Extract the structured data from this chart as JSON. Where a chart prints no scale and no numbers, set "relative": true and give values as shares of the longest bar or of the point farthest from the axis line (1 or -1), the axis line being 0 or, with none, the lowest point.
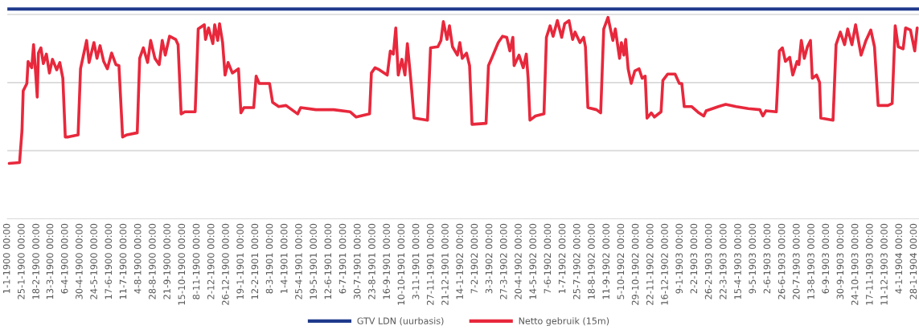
{
  "chart_data": {
    "type": "line",
    "relative": true,
    "legend": "bottom",
    "ref_lines": [
      {
        "axis": "y",
        "value": 0.325,
        "color": "#d9d9d9"
      },
      {
        "axis": "y",
        "value": 0.649,
        "color": "#d9d9d9"
      },
      {
        "axis": "y",
        "value": 0.974,
        "color": "#d9d9d9"
      }
    ],
    "line_style": "solid",
    "xlim": [
      "1900-01-01",
      "1904-02-05"
    ],
    "xticks": [
      {
        "value": "1900-01-01",
        "label": "1-1-1900 00:00"
      },
      {
        "value": "1900-01-25",
        "label": "25-1-1900 00:00"
      },
      {
        "value": "1900-02-18",
        "label": "18-2-1900 00:00"
      },
      {
        "value": "1900-03-13",
        "label": "13-3-1900 00:00"
      },
      {
        "value": "1900-04-06",
        "label": "6-4-1900 00:00"
      },
      {
        "value": "1900-04-30",
        "label": "30-4-1900 00:00"
      },
      {
        "value": "1900-05-24",
        "label": "24-5-1900 00:00"
      },
      {
        "value": "1900-06-17",
        "label": "17-6-1900 00:00"
      },
      {
        "value": "1900-07-11",
        "label": "11-7-1900 00:00"
      },
      {
        "value": "1900-08-04",
        "label": "4-8-1900 00:00"
      },
      {
        "value": "1900-08-28",
        "label": "28-8-1900 00:00"
      },
      {
        "value": "1900-09-21",
        "label": "21-9-1900 00:00"
      },
      {
        "value": "1900-10-15",
        "label": "15-10-1900 00:00"
      },
      {
        "value": "1900-11-08",
        "label": "8-11-1900 00:00"
      },
      {
        "value": "1900-12-02",
        "label": "2-12-1900 00:00"
      },
      {
        "value": "1900-12-26",
        "label": "26-12-1900 00:00"
      },
      {
        "value": "1901-01-19",
        "label": "19-1-1901 00:00"
      },
      {
        "value": "1901-02-12",
        "label": "12-2-1901 00:00"
      },
      {
        "value": "1901-03-08",
        "label": "8-3-1901 00:00"
      },
      {
        "value": "1901-04-01",
        "label": "1-4-1901 00:00"
      },
      {
        "value": "1901-04-25",
        "label": "25-4-1901 00:00"
      },
      {
        "value": "1901-05-19",
        "label": "19-5-1901 00:00"
      },
      {
        "value": "1901-06-12",
        "label": "12-6-1901 00:00"
      },
      {
        "value": "1901-07-06",
        "label": "6-7-1901 00:00"
      },
      {
        "value": "1901-07-30",
        "label": "30-7-1901 00:00"
      },
      {
        "value": "1901-08-23",
        "label": "23-8-1901 00:00"
      },
      {
        "value": "1901-09-16",
        "label": "16-9-1901 00:00"
      },
      {
        "value": "1901-10-10",
        "label": "10-10-1901 00:00"
      },
      {
        "value": "1901-11-03",
        "label": "3-11-1901 00:00"
      },
      {
        "value": "1901-11-27",
        "label": "27-11-1901 00:00"
      },
      {
        "value": "1901-12-21",
        "label": "21-12-1901 00:00"
      },
      {
        "value": "1902-01-14",
        "label": "14-1-1902 00:00"
      },
      {
        "value": "1902-02-07",
        "label": "7-2-1902 00:00"
      },
      {
        "value": "1902-03-03",
        "label": "3-3-1902 00:00"
      },
      {
        "value": "1902-03-27",
        "label": "27-3-1902 00:00"
      },
      {
        "value": "1902-04-20",
        "label": "20-4-1902 00:00"
      },
      {
        "value": "1902-05-14",
        "label": "14-5-1902 00:00"
      },
      {
        "value": "1902-06-07",
        "label": "7-6-1902 00:00"
      },
      {
        "value": "1902-07-01",
        "label": "1-7-1902 00:00"
      },
      {
        "value": "1902-07-25",
        "label": "25-7-1902 00:00"
      },
      {
        "value": "1902-08-18",
        "label": "18-8-1902 00:00"
      },
      {
        "value": "1902-09-11",
        "label": "11-9-1902 00:00"
      },
      {
        "value": "1902-10-05",
        "label": "5-10-1902 00:00"
      },
      {
        "value": "1902-10-29",
        "label": "29-10-1902 00:00"
      },
      {
        "value": "1902-11-22",
        "label": "22-11-1902 00:00"
      },
      {
        "value": "1902-12-16",
        "label": "16-12-1902 00:00"
      },
      {
        "value": "1903-01-09",
        "label": "9-1-1903 00:00"
      },
      {
        "value": "1903-02-02",
        "label": "2-2-1903 00:00"
      },
      {
        "value": "1903-02-26",
        "label": "26-2-1903 00:00"
      },
      {
        "value": "1903-03-22",
        "label": "22-3-1903 00:00"
      },
      {
        "value": "1903-04-15",
        "label": "15-4-1903 00:00"
      },
      {
        "value": "1903-05-09",
        "label": "9-5-1903 00:00"
      },
      {
        "value": "1903-06-02",
        "label": "2-6-1903 00:00"
      },
      {
        "value": "1903-06-26",
        "label": "26-6-1903 00:00"
      },
      {
        "value": "1903-07-20",
        "label": "20-7-1903 00:00"
      },
      {
        "value": "1903-08-13",
        "label": "13-8-1903 00:00"
      },
      {
        "value": "1903-09-06",
        "label": "6-9-1903 00:00"
      },
      {
        "value": "1903-09-30",
        "label": "30-9-1903 00:00"
      },
      {
        "value": "1903-10-24",
        "label": "24-10-1903 00:00"
      },
      {
        "value": "1903-11-17",
        "label": "17-11-1903 00:00"
      },
      {
        "value": "1903-12-11",
        "label": "11-12-1903 00:00"
      },
      {
        "value": "1904-01-04",
        "label": "4-1-1904 00:00"
      },
      {
        "value": "1904-01-28",
        "label": "28-1-1904 00:00"
      }
    ],
    "series": [
      {
        "name": "GTV LDN (uurbasis)",
        "color": "#1f3a8c",
        "x": [
          "1900-01-01",
          "1904-02-05"
        ],
        "values": [
          1,
          1
        ]
      },
      {
        "name": "Netto gebruik (15m)",
        "color": "#e8283c",
        "x": [
          "1900-01-04",
          "1900-01-21",
          "1900-01-25",
          "1900-01-27",
          "1900-02-02",
          "1900-02-04",
          "1900-02-10",
          "1900-02-13",
          "1900-02-17",
          "1900-02-19",
          "1900-02-21",
          "1900-02-25",
          "1900-03-01",
          "1900-03-06",
          "1900-03-11",
          "1900-03-16",
          "1900-03-23",
          "1900-03-28",
          "1900-04-02",
          "1900-04-06",
          "1900-04-11",
          "1900-04-27",
          "1900-05-01",
          "1900-05-11",
          "1900-05-15",
          "1900-05-23",
          "1900-05-28",
          "1900-06-02",
          "1900-06-08",
          "1900-06-14",
          "1900-06-21",
          "1900-06-28",
          "1900-07-03",
          "1900-07-09",
          "1900-07-16",
          "1900-08-02",
          "1900-08-06",
          "1900-08-12",
          "1900-08-19",
          "1900-08-24",
          "1900-08-31",
          "1900-09-07",
          "1900-09-12",
          "1900-09-17",
          "1900-09-24",
          "1900-10-04",
          "1900-10-08",
          "1900-10-13",
          "1900-10-19",
          "1900-11-05",
          "1900-11-10",
          "1900-11-20",
          "1900-11-22",
          "1900-11-27",
          "1900-12-04",
          "1900-12-07",
          "1900-12-12",
          "1900-12-15",
          "1900-12-20",
          "1900-12-24",
          "1900-12-29",
          "1901-01-05",
          "1901-01-15",
          "1901-01-19",
          "1901-01-24",
          "1901-02-09",
          "1901-02-13",
          "1901-02-18",
          "1901-03-07",
          "1901-03-12",
          "1901-03-22",
          "1901-04-03",
          "1901-04-22",
          "1901-04-27",
          "1901-05-22",
          "1901-06-20",
          "1901-07-17",
          "1901-07-27",
          "1901-08-18",
          "1901-08-21",
          "1901-08-27",
          "1901-09-03",
          "1901-09-16",
          "1901-09-21",
          "1901-09-26",
          "1901-09-30",
          "1901-10-04",
          "1901-10-10",
          "1901-10-15",
          "1901-10-19",
          "1901-10-25",
          "1901-10-30",
          "1901-11-21",
          "1901-11-26",
          "1901-12-08",
          "1901-12-13",
          "1901-12-17",
          "1901-12-23",
          "1901-12-27",
          "1902-01-01",
          "1902-01-09",
          "1902-01-13",
          "1902-01-17",
          "1902-01-24",
          "1902-01-29",
          "1902-02-02",
          "1902-02-25",
          "1902-03-01",
          "1902-03-07",
          "1902-03-17",
          "1902-03-24",
          "1902-03-31",
          "1902-04-05",
          "1902-04-10",
          "1902-04-12",
          "1902-04-20",
          "1902-04-27",
          "1902-05-02",
          "1902-05-05",
          "1902-05-08",
          "1902-05-17",
          "1902-05-31",
          "1902-06-04",
          "1902-06-10",
          "1902-06-15",
          "1902-06-22",
          "1902-06-29",
          "1902-07-04",
          "1902-07-11",
          "1902-07-17",
          "1902-07-21",
          "1902-07-29",
          "1902-08-04",
          "1902-08-07",
          "1902-08-11",
          "1902-08-25",
          "1902-09-01",
          "1902-09-06",
          "1902-09-13",
          "1902-09-21",
          "1902-09-25",
          "1902-10-02",
          "1902-10-05",
          "1902-10-09",
          "1902-10-12",
          "1902-10-16",
          "1902-10-21",
          "1902-10-27",
          "1902-11-03",
          "1902-11-08",
          "1902-11-13",
          "1902-11-16",
          "1902-11-23",
          "1902-11-28",
          "1902-12-09",
          "1902-12-12",
          "1902-12-20",
          "1903-01-01",
          "1903-01-08",
          "1903-01-12",
          "1903-01-16",
          "1903-01-28",
          "1903-02-09",
          "1903-02-17",
          "1903-02-21",
          "1903-03-13",
          "1903-03-25",
          "1903-04-11",
          "1903-05-01",
          "1903-05-20",
          "1903-05-25",
          "1903-05-30",
          "1903-06-16",
          "1903-06-21",
          "1903-06-26",
          "1903-07-01",
          "1903-07-08",
          "1903-07-13",
          "1903-07-20",
          "1903-07-23",
          "1903-07-27",
          "1903-08-01",
          "1903-08-06",
          "1903-08-11",
          "1903-08-14",
          "1903-08-21",
          "1903-08-26",
          "1903-08-28",
          "1903-09-17",
          "1903-09-22",
          "1903-09-29",
          "1903-10-06",
          "1903-10-11",
          "1903-10-18",
          "1903-10-24",
          "1903-11-02",
          "1903-11-10",
          "1903-11-18",
          "1903-11-24",
          "1903-11-30",
          "1903-12-16",
          "1903-12-23",
          "1903-12-28",
          "1904-01-02",
          "1904-01-10",
          "1904-01-14",
          "1904-01-22",
          "1904-01-29",
          "1904-02-02"
        ],
        "values": [
          0.264,
          0.268,
          0.42,
          0.61,
          0.645,
          0.75,
          0.72,
          0.83,
          0.67,
          0.58,
          0.79,
          0.815,
          0.74,
          0.785,
          0.695,
          0.76,
          0.71,
          0.745,
          0.67,
          0.39,
          0.39,
          0.4,
          0.715,
          0.85,
          0.745,
          0.84,
          0.765,
          0.825,
          0.75,
          0.715,
          0.79,
          0.735,
          0.73,
          0.39,
          0.4,
          0.41,
          0.765,
          0.815,
          0.745,
          0.85,
          0.765,
          0.735,
          0.85,
          0.78,
          0.87,
          0.855,
          0.83,
          0.5,
          0.51,
          0.51,
          0.905,
          0.925,
          0.855,
          0.91,
          0.835,
          0.925,
          0.85,
          0.93,
          0.84,
          0.685,
          0.745,
          0.695,
          0.715,
          0.505,
          0.53,
          0.53,
          0.68,
          0.645,
          0.645,
          0.555,
          0.535,
          0.54,
          0.5,
          0.53,
          0.52,
          0.52,
          0.51,
          0.485,
          0.5,
          0.695,
          0.72,
          0.71,
          0.685,
          0.8,
          0.785,
          0.91,
          0.685,
          0.76,
          0.685,
          0.835,
          0.65,
          0.48,
          0.47,
          0.815,
          0.82,
          0.85,
          0.94,
          0.855,
          0.92,
          0.82,
          0.78,
          0.84,
          0.765,
          0.79,
          0.73,
          0.45,
          0.455,
          0.73,
          0.77,
          0.84,
          0.87,
          0.865,
          0.8,
          0.865,
          0.73,
          0.78,
          0.72,
          0.785,
          0.67,
          0.47,
          0.49,
          0.5,
          0.865,
          0.92,
          0.87,
          0.945,
          0.865,
          0.93,
          0.945,
          0.855,
          0.89,
          0.84,
          0.865,
          0.82,
          0.53,
          0.52,
          0.505,
          0.905,
          0.96,
          0.85,
          0.905,
          0.765,
          0.84,
          0.78,
          0.855,
          0.715,
          0.645,
          0.705,
          0.715,
          0.67,
          0.68,
          0.48,
          0.505,
          0.485,
          0.51,
          0.66,
          0.69,
          0.69,
          0.645,
          0.645,
          0.535,
          0.535,
          0.505,
          0.49,
          0.515,
          0.535,
          0.545,
          0.535,
          0.525,
          0.52,
          0.49,
          0.515,
          0.51,
          0.8,
          0.815,
          0.75,
          0.77,
          0.685,
          0.75,
          0.735,
          0.85,
          0.765,
          0.82,
          0.85,
          0.67,
          0.685,
          0.65,
          0.48,
          0.47,
          0.83,
          0.89,
          0.83,
          0.905,
          0.83,
          0.925,
          0.78,
          0.85,
          0.9,
          0.82,
          0.54,
          0.54,
          0.55,
          0.92,
          0.82,
          0.81,
          0.91,
          0.9,
          0.8,
          0.91
        ]
      }
    ]
  }
}
